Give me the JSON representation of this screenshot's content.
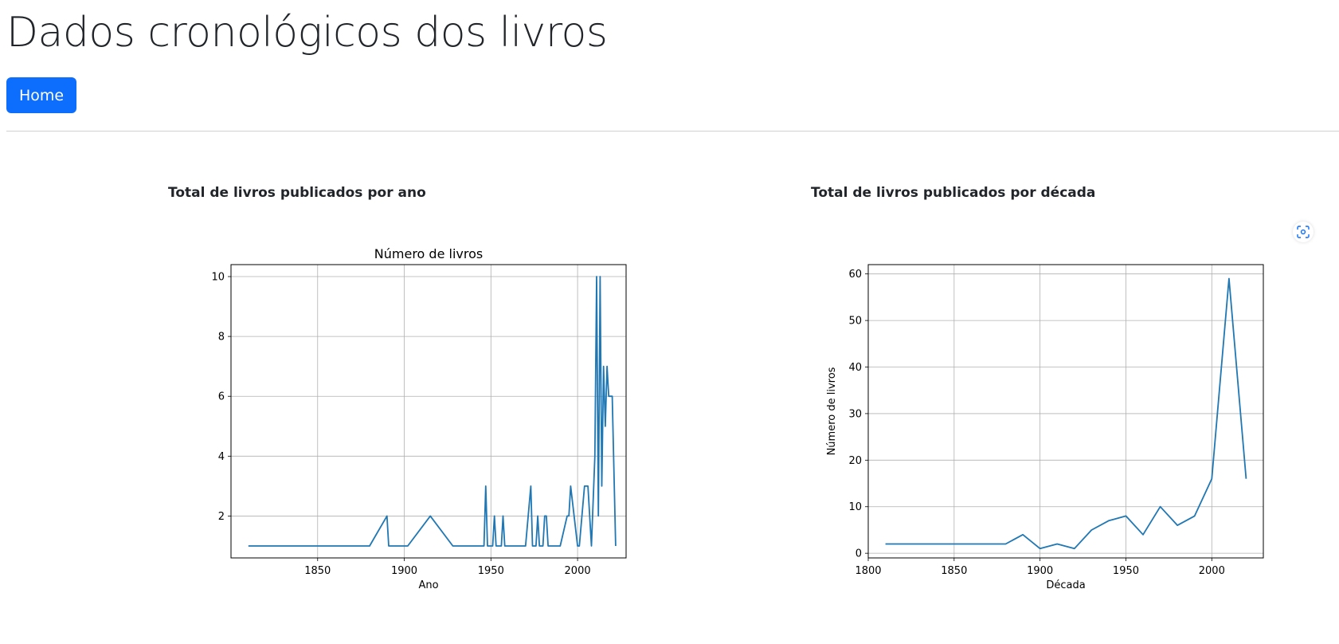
{
  "page": {
    "title": "Dados cronológicos dos livros",
    "home_label": "Home"
  },
  "sections": [
    {
      "heading": "Total de livros publicados por ano"
    },
    {
      "heading": "Total de livros publicados por década"
    }
  ],
  "icons": {
    "expand": "focus-expand-icon"
  },
  "colors": {
    "line": "#1f77b4",
    "button": "#0d6efd",
    "grid": "#b0b0b0"
  },
  "chart_data": [
    {
      "type": "line",
      "title": "Número de livros",
      "xlabel": "Ano",
      "ylabel": "",
      "xlim": [
        1800,
        2028
      ],
      "ylim": [
        0.6,
        10.4
      ],
      "xticks": [
        1850,
        1900,
        1950,
        2000
      ],
      "yticks": [
        2,
        4,
        6,
        8,
        10
      ],
      "grid": true,
      "x": [
        1810,
        1880,
        1890,
        1891,
        1902,
        1915,
        1928,
        1946,
        1947,
        1948,
        1951,
        1952,
        1953,
        1954,
        1956,
        1957,
        1958,
        1970,
        1973,
        1974,
        1976,
        1977,
        1978,
        1980,
        1981,
        1982,
        1983,
        1990,
        1994,
        1995,
        1996,
        2000,
        2001,
        2004,
        2005,
        2006,
        2008,
        2010,
        2011,
        2012,
        2013,
        2014,
        2015,
        2016,
        2017,
        2018,
        2019,
        2020,
        2022
      ],
      "values": [
        1,
        1,
        2,
        1,
        1,
        2,
        1,
        1,
        3,
        1,
        1,
        2,
        1,
        1,
        1,
        2,
        1,
        1,
        3,
        1,
        1,
        2,
        1,
        1,
        2,
        2,
        1,
        1,
        2,
        2,
        3,
        1,
        1,
        3,
        3,
        3,
        1,
        4,
        10,
        2,
        10,
        3,
        7,
        5,
        7,
        6,
        6,
        6,
        1
      ]
    },
    {
      "type": "line",
      "title": "",
      "xlabel": "Década",
      "ylabel": "Número de livros",
      "xlim": [
        1800,
        2030
      ],
      "ylim": [
        -1,
        62
      ],
      "xticks": [
        1800,
        1850,
        1900,
        1950,
        2000
      ],
      "yticks": [
        0,
        10,
        20,
        30,
        40,
        50,
        60
      ],
      "grid": true,
      "x": [
        1810,
        1820,
        1830,
        1840,
        1850,
        1860,
        1870,
        1880,
        1890,
        1900,
        1910,
        1920,
        1930,
        1940,
        1950,
        1960,
        1970,
        1980,
        1990,
        2000,
        2010,
        2020
      ],
      "values": [
        2,
        2,
        2,
        2,
        2,
        2,
        2,
        2,
        4,
        1,
        2,
        1,
        5,
        7,
        8,
        4,
        10,
        6,
        8,
        16,
        59,
        16
      ]
    }
  ]
}
